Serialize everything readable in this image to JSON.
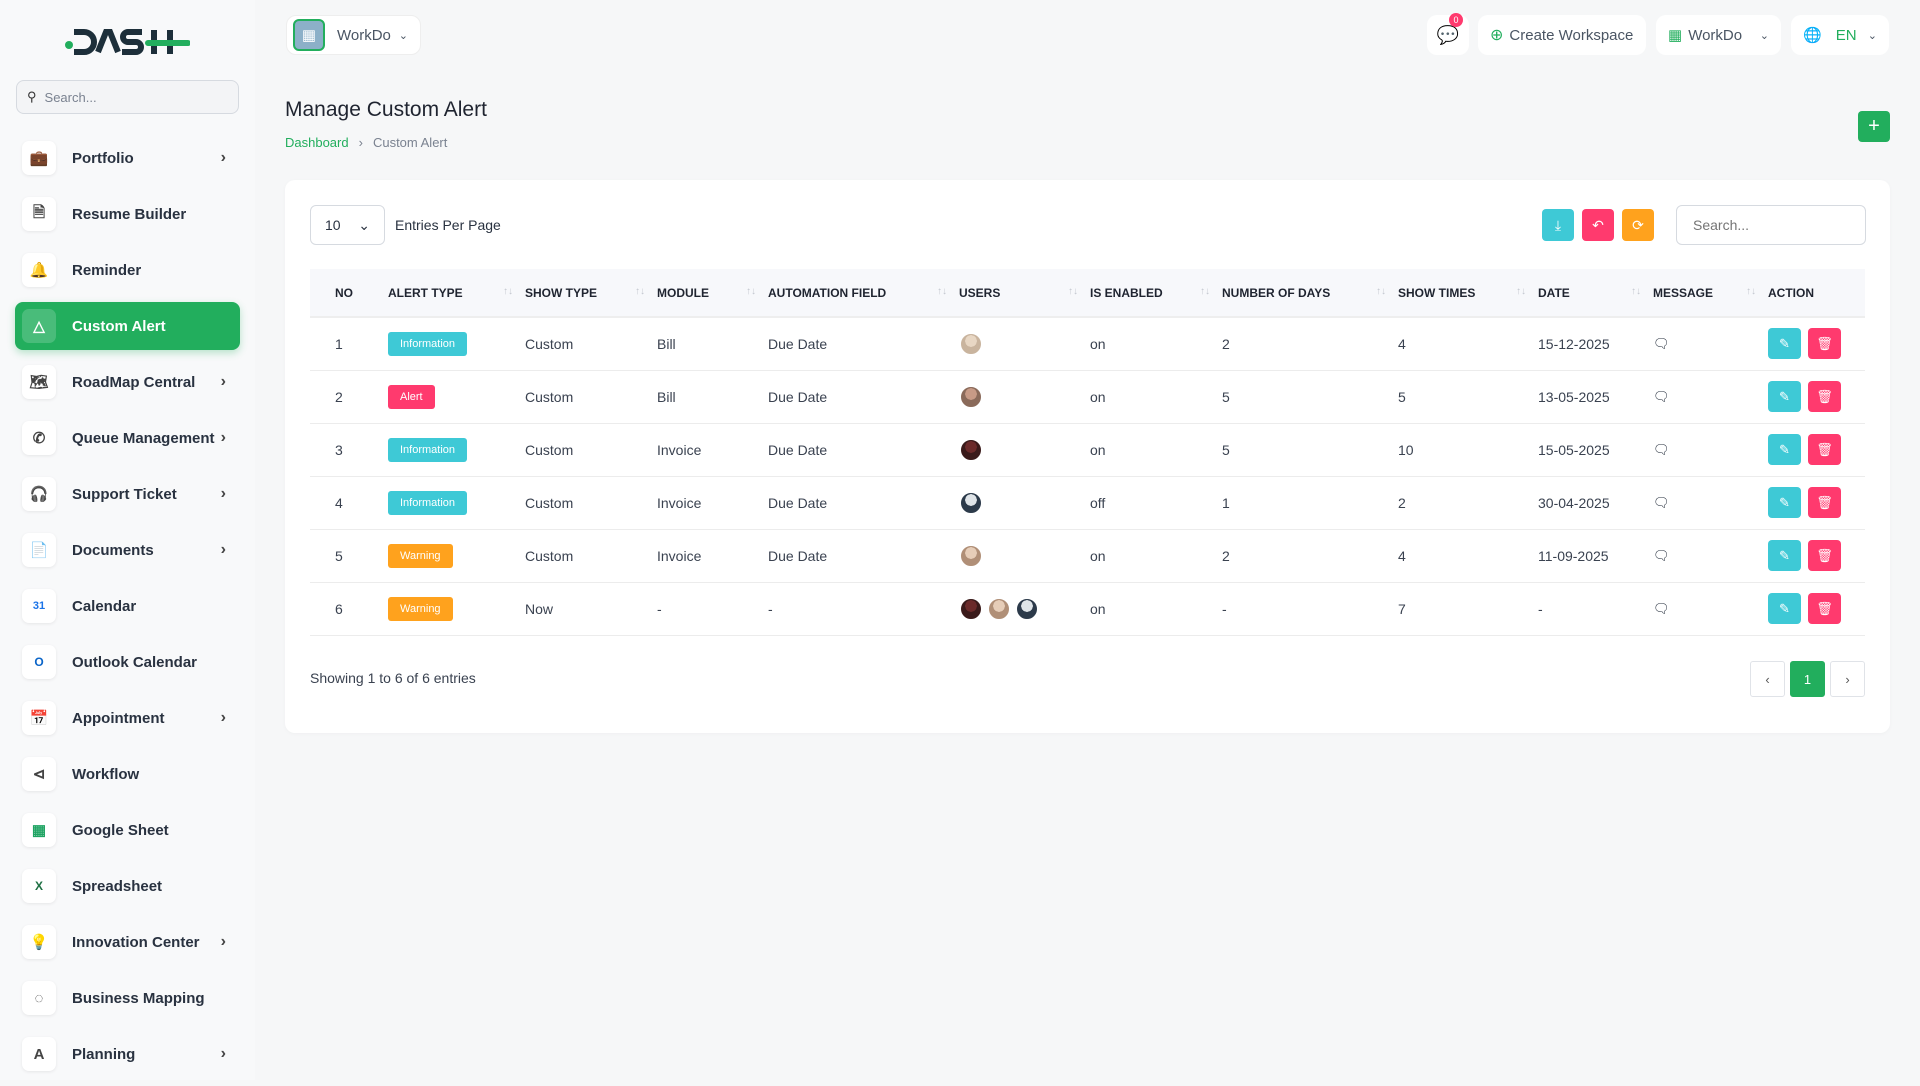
{
  "brand": {
    "logo": "DASH",
    "search_placeholder": "Search..."
  },
  "sidebar": {
    "items": [
      {
        "label": "Portfolio",
        "icon": "briefcase-icon",
        "chevron": true
      },
      {
        "label": "Resume Builder",
        "icon": "file-icon",
        "chevron": false
      },
      {
        "label": "Reminder",
        "icon": "bell-icon",
        "chevron": false
      },
      {
        "label": "Custom Alert",
        "icon": "alert-triangle-icon",
        "chevron": false,
        "active": true
      },
      {
        "label": "RoadMap Central",
        "icon": "map-icon",
        "chevron": true
      },
      {
        "label": "Queue Management",
        "icon": "phone-icon",
        "chevron": true
      },
      {
        "label": "Support Ticket",
        "icon": "headset-icon",
        "chevron": true
      },
      {
        "label": "Documents",
        "icon": "document-icon",
        "chevron": true
      },
      {
        "label": "Calendar",
        "icon": "calendar-icon",
        "chevron": false
      },
      {
        "label": "Outlook Calendar",
        "icon": "outlook-icon",
        "chevron": false
      },
      {
        "label": "Appointment",
        "icon": "calendar-clock-icon",
        "chevron": true
      },
      {
        "label": "Workflow",
        "icon": "workflow-icon",
        "chevron": false
      },
      {
        "label": "Google Sheet",
        "icon": "google-sheet-icon",
        "chevron": false
      },
      {
        "label": "Spreadsheet",
        "icon": "excel-icon",
        "chevron": false
      },
      {
        "label": "Innovation Center",
        "icon": "bulb-icon",
        "chevron": true
      },
      {
        "label": "Business Mapping",
        "icon": "circle-dashed-icon",
        "chevron": false
      },
      {
        "label": "Planning",
        "icon": "planning-icon",
        "chevron": true
      }
    ]
  },
  "topbar": {
    "workspace": "WorkDo",
    "notifications": "0",
    "create_workspace": "Create Workspace",
    "workspace_menu": "WorkDo",
    "language": "EN"
  },
  "page": {
    "title": "Manage Custom Alert",
    "breadcrumb": [
      "Dashboard",
      "Custom Alert"
    ]
  },
  "table": {
    "entries_value": "10",
    "entries_label": "Entries Per Page",
    "search_placeholder": "Search...",
    "columns": [
      "NO",
      "ALERT TYPE",
      "SHOW TYPE",
      "MODULE",
      "AUTOMATION FIELD",
      "USERS",
      "IS ENABLED",
      "NUMBER OF DAYS",
      "SHOW TIMES",
      "DATE",
      "MESSAGE",
      "ACTION"
    ],
    "rows": [
      {
        "no": "1",
        "alert_type": "Information",
        "show_type": "Custom",
        "module": "Bill",
        "automation_field": "Due Date",
        "users": 1,
        "enabled": "on",
        "days": "2",
        "times": "4",
        "date": "15-12-2025"
      },
      {
        "no": "2",
        "alert_type": "Alert",
        "show_type": "Custom",
        "module": "Bill",
        "automation_field": "Due Date",
        "users": 1,
        "enabled": "on",
        "days": "5",
        "times": "5",
        "date": "13-05-2025"
      },
      {
        "no": "3",
        "alert_type": "Information",
        "show_type": "Custom",
        "module": "Invoice",
        "automation_field": "Due Date",
        "users": 1,
        "enabled": "on",
        "days": "5",
        "times": "10",
        "date": "15-05-2025"
      },
      {
        "no": "4",
        "alert_type": "Information",
        "show_type": "Custom",
        "module": "Invoice",
        "automation_field": "Due Date",
        "users": 1,
        "enabled": "off",
        "days": "1",
        "times": "2",
        "date": "30-04-2025"
      },
      {
        "no": "5",
        "alert_type": "Warning",
        "show_type": "Custom",
        "module": "Invoice",
        "automation_field": "Due Date",
        "users": 1,
        "enabled": "on",
        "days": "2",
        "times": "4",
        "date": "11-09-2025"
      },
      {
        "no": "6",
        "alert_type": "Warning",
        "show_type": "Now",
        "module": "-",
        "automation_field": "-",
        "users": 3,
        "enabled": "on",
        "days": "-",
        "times": "7",
        "date": "-"
      }
    ],
    "showing": "Showing 1 to 6 of 6 entries",
    "current_page": "1"
  },
  "colors": {
    "primary": "#22ae5d",
    "Information": "#3ec9d6",
    "Alert": "#ff3a6e",
    "Warning": "#ffa21d"
  }
}
